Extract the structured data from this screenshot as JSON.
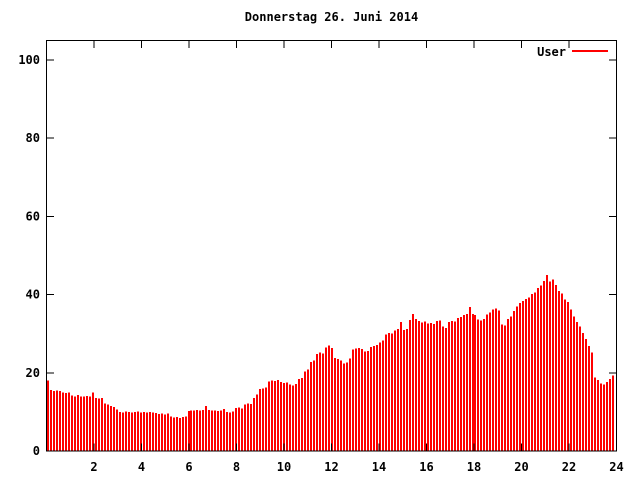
{
  "window": {
    "background": "#ffffff"
  },
  "chart_data": {
    "type": "bar",
    "title": "Donnerstag 26. Juni 2014",
    "legend": [
      {
        "label": "User",
        "color": "#ff0000"
      }
    ],
    "x": {
      "min": 0,
      "max": 24,
      "ticks": [
        2,
        4,
        6,
        8,
        10,
        12,
        14,
        16,
        18,
        20,
        22,
        24
      ],
      "unit": "hour",
      "grid": false
    },
    "y": {
      "min": 0,
      "max": 105,
      "ticks": [
        0,
        20,
        40,
        60,
        80,
        100
      ],
      "grid": false
    },
    "bar_color": "#ff0000",
    "axis_color": "#000000",
    "legend_position": "top-right-inside",
    "sample_interval_hours": 0.1263,
    "values": [
      18.0,
      15.6,
      15.4,
      15.5,
      15.3,
      15.0,
      14.8,
      15.0,
      14.2,
      14.0,
      14.3,
      14.0,
      13.9,
      14.1,
      14.0,
      15.0,
      13.6,
      13.4,
      13.5,
      12.1,
      11.9,
      11.5,
      11.2,
      10.6,
      10.0,
      9.9,
      10.1,
      10.0,
      9.8,
      10.0,
      10.1,
      9.9,
      10.0,
      9.8,
      10.0,
      9.9,
      9.7,
      9.5,
      9.6,
      9.4,
      9.6,
      8.8,
      8.6,
      8.7,
      8.5,
      8.7,
      8.8,
      10.2,
      10.4,
      10.3,
      10.5,
      10.4,
      10.5,
      11.5,
      10.5,
      10.3,
      10.4,
      10.2,
      10.4,
      10.8,
      10.0,
      9.9,
      10.1,
      11.0,
      11.1,
      10.9,
      11.9,
      12.1,
      12.0,
      13.5,
      14.5,
      15.8,
      16.0,
      16.2,
      17.8,
      18.0,
      17.9,
      18.1,
      17.6,
      17.4,
      17.5,
      17.0,
      16.8,
      17.1,
      18.4,
      18.7,
      20.3,
      20.8,
      22.8,
      23.2,
      24.8,
      25.2,
      25.0,
      26.5,
      27.0,
      26.3,
      23.8,
      23.5,
      23.2,
      22.4,
      22.6,
      23.6,
      25.9,
      26.2,
      26.4,
      26.1,
      25.4,
      25.6,
      26.6,
      26.9,
      27.1,
      27.8,
      28.3,
      29.8,
      30.2,
      30.0,
      30.8,
      31.2,
      33.0,
      31.0,
      31.2,
      33.5,
      35.0,
      33.8,
      33.2,
      32.9,
      33.1,
      32.6,
      32.8,
      32.5,
      33.2,
      33.4,
      31.8,
      31.5,
      33.0,
      33.3,
      33.1,
      34.0,
      34.3,
      34.8,
      35.1,
      36.8,
      35.0,
      34.8,
      33.6,
      33.4,
      33.8,
      34.9,
      35.4,
      36.2,
      36.5,
      36.0,
      32.4,
      32.1,
      33.8,
      34.4,
      35.8,
      36.9,
      37.8,
      38.4,
      38.9,
      39.2,
      40.2,
      40.6,
      41.7,
      42.3,
      43.5,
      45.0,
      43.4,
      43.9,
      42.4,
      40.9,
      40.3,
      38.8,
      38.1,
      36.2,
      34.4,
      33.0,
      31.8,
      30.2,
      28.6,
      26.8,
      25.2,
      18.8,
      18.2,
      17.3,
      17.0,
      17.6,
      18.4,
      19.3
    ]
  }
}
